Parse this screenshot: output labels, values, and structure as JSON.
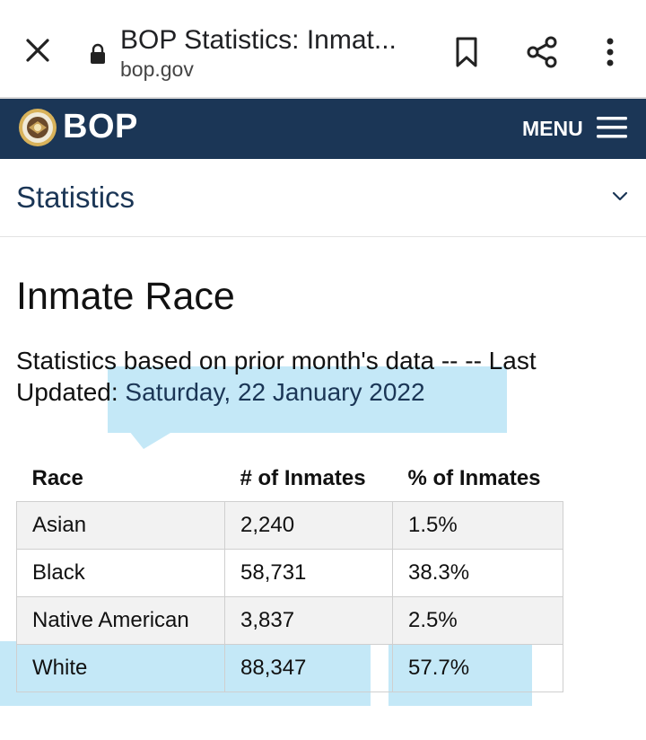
{
  "browser": {
    "title": "BOP Statistics: Inmat...",
    "domain": "bop.gov"
  },
  "site": {
    "brand": "BOP",
    "menu_label": "MENU",
    "header_color": "#1b3656"
  },
  "section": {
    "label": "Statistics"
  },
  "page": {
    "title": "Inmate Race",
    "subtitle_prefix": "Statistics based on prior month's data -- -- Last Updated: ",
    "updated_date": "Saturday, 22 January 2022"
  },
  "table": {
    "headers": [
      "Race",
      "# of Inmates",
      "% of Inmates"
    ],
    "rows": [
      {
        "race": "Asian",
        "count": "2,240",
        "percent": "1.5%"
      },
      {
        "race": "Black",
        "count": "58,731",
        "percent": "38.3%"
      },
      {
        "race": "Native American",
        "count": "3,837",
        "percent": "2.5%"
      },
      {
        "race": "White",
        "count": "88,347",
        "percent": "57.7%"
      }
    ]
  },
  "highlight_color": "#c4e8f7"
}
